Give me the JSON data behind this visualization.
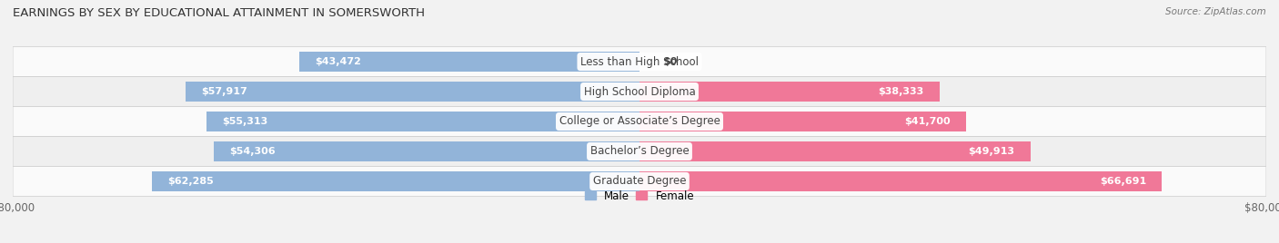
{
  "title": "EARNINGS BY SEX BY EDUCATIONAL ATTAINMENT IN SOMERSWORTH",
  "source": "Source: ZipAtlas.com",
  "categories": [
    "Less than High School",
    "High School Diploma",
    "College or Associate’s Degree",
    "Bachelor’s Degree",
    "Graduate Degree"
  ],
  "male_values": [
    43472,
    57917,
    55313,
    54306,
    62285
  ],
  "female_values": [
    0,
    38333,
    41700,
    49913,
    66691
  ],
  "male_color": "#92b4d9",
  "female_color": "#f07898",
  "male_label": "Male",
  "female_label": "Female",
  "axis_max": 80000,
  "bar_height": 0.68,
  "background_color": "#f2f2f2",
  "row_colors": [
    "#fafafa",
    "#efefef"
  ],
  "title_fontsize": 9.5,
  "value_fontsize": 8.0,
  "cat_fontsize": 8.5,
  "tick_fontsize": 8.5,
  "source_fontsize": 7.5
}
